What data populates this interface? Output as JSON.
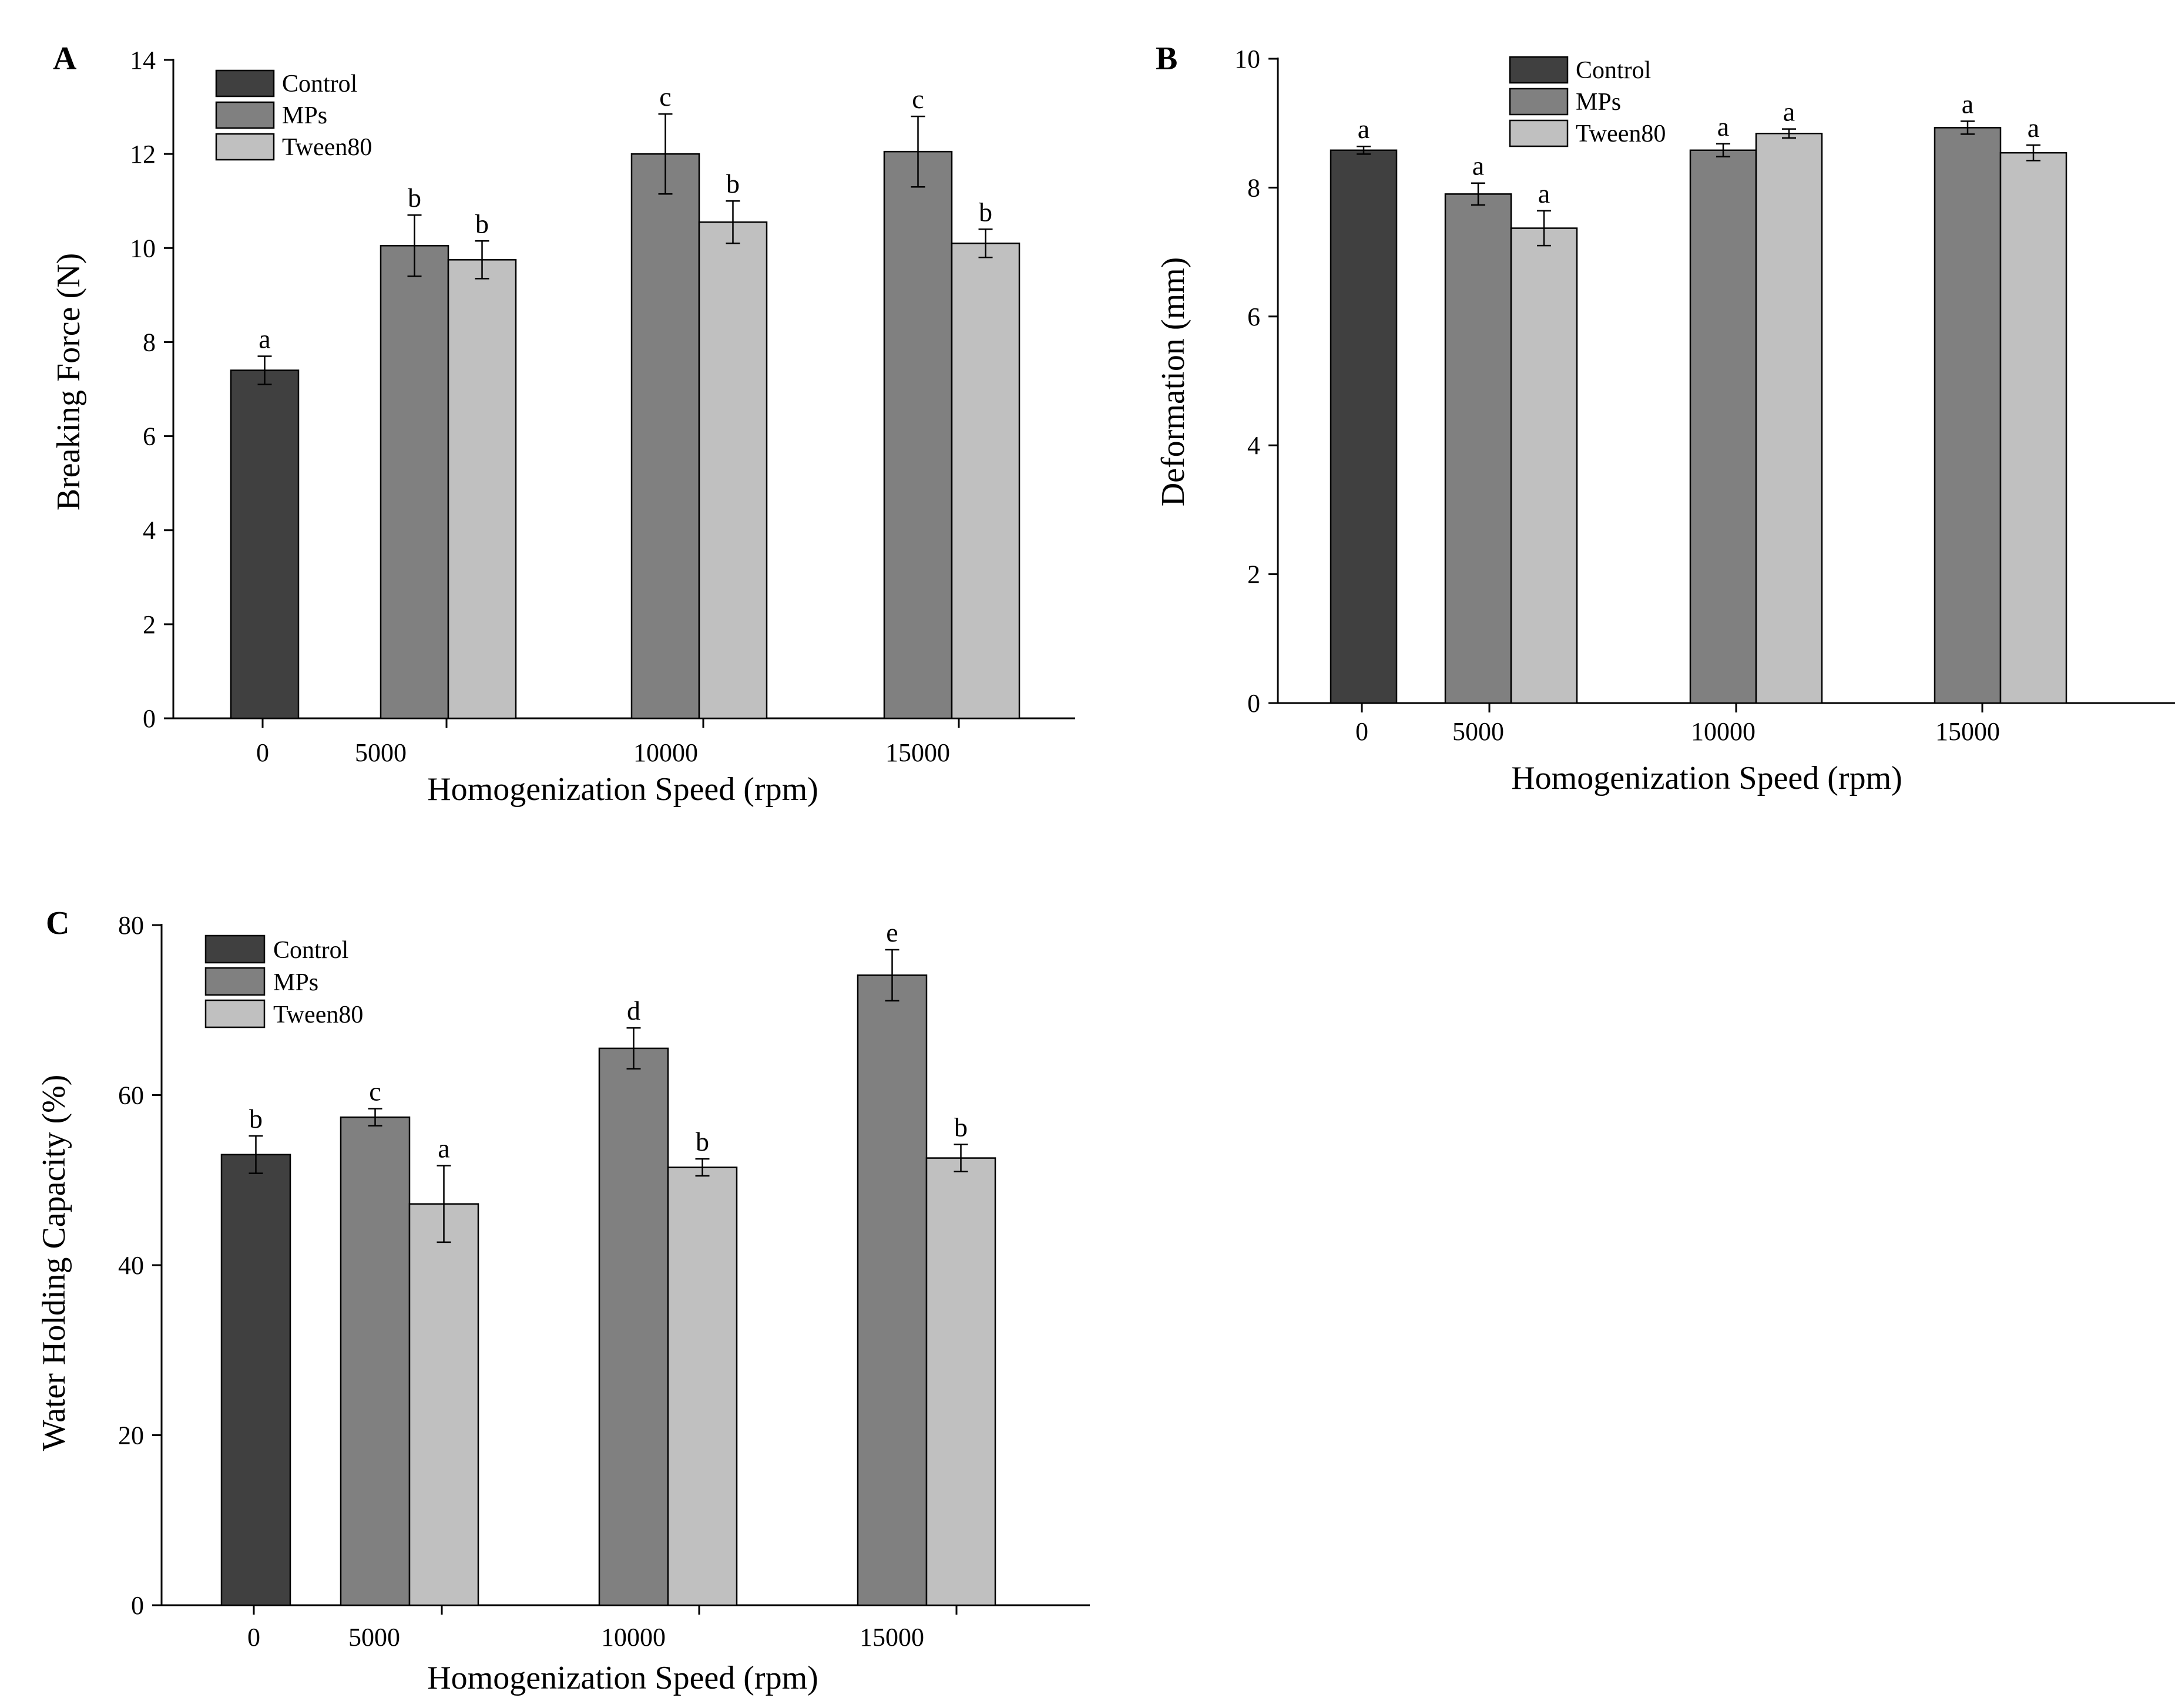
{
  "colors": {
    "control": "#404040",
    "mps": "#808080",
    "tween80": "#c0c0c0"
  },
  "chart_data": [
    {
      "panel": "A",
      "type": "bar",
      "xlabel": "Homogenization Speed (rpm)",
      "ylabel": "Breaking Force (N)",
      "ylim": [
        0,
        14
      ],
      "yticks": [
        0,
        2,
        4,
        6,
        8,
        10,
        12,
        14
      ],
      "categories": [
        "0",
        "5000",
        "10000",
        "15000"
      ],
      "legend": [
        "Control",
        "MPs",
        "Tween80"
      ],
      "legend_position": "top-left",
      "series": [
        {
          "name": "Control",
          "values": [
            7.4,
            null,
            null,
            null
          ],
          "errors": [
            0.3,
            null,
            null,
            null
          ],
          "labels": [
            "a",
            null,
            null,
            null
          ]
        },
        {
          "name": "MPs",
          "values": [
            null,
            10.05,
            12.0,
            12.05
          ],
          "errors": [
            null,
            0.65,
            0.85,
            0.75
          ],
          "labels": [
            null,
            "b",
            "c",
            "c"
          ]
        },
        {
          "name": "Tween80",
          "values": [
            null,
            9.75,
            10.55,
            10.1
          ],
          "errors": [
            null,
            0.4,
            0.45,
            0.3
          ],
          "labels": [
            null,
            "b",
            "b",
            "b"
          ]
        }
      ]
    },
    {
      "panel": "B",
      "type": "bar",
      "xlabel": "Homogenization Speed (rpm)",
      "ylabel": "Deformation (mm)",
      "ylim": [
        0,
        10
      ],
      "yticks": [
        0,
        2,
        4,
        6,
        8,
        10
      ],
      "categories": [
        "0",
        "5000",
        "10000",
        "15000"
      ],
      "legend": [
        "Control",
        "MPs",
        "Tween80"
      ],
      "legend_position": "top-center",
      "series": [
        {
          "name": "Control",
          "values": [
            8.58,
            null,
            null,
            null
          ],
          "errors": [
            0.06,
            null,
            null,
            null
          ],
          "labels": [
            "a",
            null,
            null,
            null
          ]
        },
        {
          "name": "MPs",
          "values": [
            null,
            7.9,
            8.58,
            8.93
          ],
          "errors": [
            null,
            0.17,
            0.1,
            0.1
          ],
          "labels": [
            null,
            "a",
            "a",
            "a"
          ]
        },
        {
          "name": "Tween80",
          "values": [
            null,
            7.37,
            8.84,
            8.54
          ],
          "errors": [
            null,
            0.27,
            0.07,
            0.12
          ],
          "labels": [
            null,
            "a",
            "a",
            "a"
          ]
        }
      ]
    },
    {
      "panel": "C",
      "type": "bar",
      "xlabel": "Homogenization Speed (rpm)",
      "ylabel": "Water Holding Capacity (%)",
      "ylim": [
        0,
        80
      ],
      "yticks": [
        0,
        20,
        40,
        60,
        80
      ],
      "categories": [
        "0",
        "5000",
        "10000",
        "15000"
      ],
      "legend": [
        "Control",
        "MPs",
        "Tween80"
      ],
      "legend_position": "top-left",
      "series": [
        {
          "name": "Control",
          "values": [
            53.0,
            null,
            null,
            null
          ],
          "errors": [
            2.2,
            null,
            null,
            null
          ],
          "labels": [
            "b",
            null,
            null,
            null
          ]
        },
        {
          "name": "MPs",
          "values": [
            null,
            57.4,
            65.5,
            74.1
          ],
          "errors": [
            null,
            1.0,
            2.4,
            3.0
          ],
          "labels": [
            null,
            "c",
            "d",
            "e"
          ]
        },
        {
          "name": "Tween80",
          "values": [
            null,
            47.2,
            51.5,
            52.6
          ],
          "errors": [
            null,
            4.5,
            1.0,
            1.6
          ],
          "labels": [
            null,
            "a",
            "b",
            "b"
          ]
        }
      ]
    }
  ]
}
